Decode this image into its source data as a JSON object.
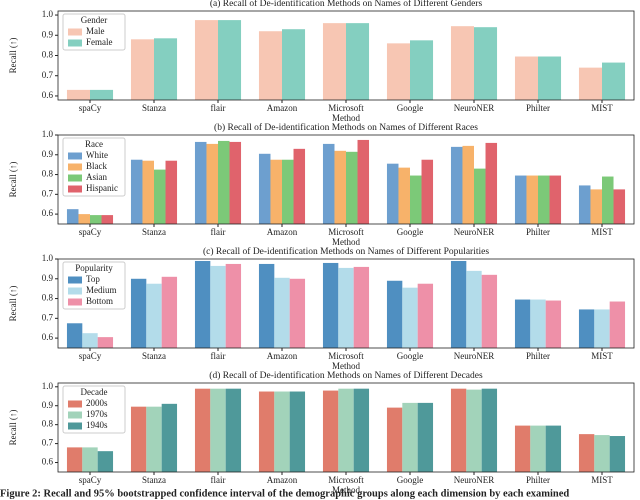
{
  "caption": "Figure 2: Recall and 95% bootstrapped confidence interval of the demographic groups along each dimension by each examined",
  "chart_data": [
    {
      "type": "bar",
      "title": "(a) Recall of De-identification Methods on Names of Different Genders",
      "y_label": "Recall (↑)",
      "x_label": "Method",
      "legend_title": "Gender",
      "categories": [
        "spaCy",
        "Stanza",
        "flair",
        "Amazon",
        "Microsoft",
        "Google",
        "NeuroNER",
        "Philter",
        "MIST"
      ],
      "series": [
        {
          "name": "Male",
          "color": "#f7c6b3",
          "values": [
            0.63,
            0.88,
            0.975,
            0.92,
            0.96,
            0.86,
            0.945,
            0.795,
            0.74
          ]
        },
        {
          "name": "Female",
          "color": "#84cfc0",
          "values": [
            0.63,
            0.885,
            0.975,
            0.93,
            0.96,
            0.875,
            0.94,
            0.795,
            0.765
          ]
        }
      ],
      "ylim": [
        0.58,
        1.02
      ],
      "yticks": [
        0.6,
        0.7,
        0.8,
        0.9,
        {
          "value": 1,
          "label": "1.0"
        }
      ]
    },
    {
      "type": "bar",
      "title": "(b) Recall of De-identification Methods on Names of Different Races",
      "y_label": "Recall (↑)",
      "x_label": "Method",
      "legend_title": "Race",
      "categories": [
        "spaCy",
        "Stanza",
        "flair",
        "Amazon",
        "Microsoft",
        "Google",
        "NeuroNER",
        "Philter",
        "MIST"
      ],
      "series": [
        {
          "name": "White",
          "color": "#6d9fcf",
          "values": [
            0.625,
            0.875,
            0.965,
            0.905,
            0.955,
            0.855,
            0.94,
            0.795,
            0.745
          ]
        },
        {
          "name": "Black",
          "color": "#f7b26a",
          "values": [
            0.6,
            0.87,
            0.955,
            0.875,
            0.92,
            0.835,
            0.945,
            0.795,
            0.725
          ]
        },
        {
          "name": "Asian",
          "color": "#7cc978",
          "values": [
            0.595,
            0.825,
            0.97,
            0.875,
            0.915,
            0.795,
            0.83,
            0.795,
            0.79
          ]
        },
        {
          "name": "Hispanic",
          "color": "#e0636c",
          "values": [
            0.595,
            0.87,
            0.965,
            0.93,
            0.975,
            0.875,
            0.96,
            0.795,
            0.725
          ]
        }
      ],
      "ylim": [
        0.55,
        1.0
      ],
      "yticks": [
        0.6,
        0.7,
        0.8,
        0.9,
        {
          "value": 1,
          "label": "1.0"
        }
      ]
    },
    {
      "type": "bar",
      "title": "(c) Recall of De-identification Methods on Names of Different Popularities",
      "y_label": "Recall (↑)",
      "x_label": "Method",
      "legend_title": "Popularity",
      "categories": [
        "spaCy",
        "Stanza",
        "flair",
        "Amazon",
        "Microsoft",
        "Google",
        "NeuroNER",
        "Philter",
        "MIST"
      ],
      "series": [
        {
          "name": "Top",
          "color": "#4f8fc1",
          "values": [
            0.675,
            0.9,
            0.99,
            0.975,
            0.98,
            0.89,
            0.99,
            0.795,
            0.745
          ]
        },
        {
          "name": "Medium",
          "color": "#b3dcea",
          "values": [
            0.625,
            0.875,
            0.965,
            0.905,
            0.955,
            0.855,
            0.94,
            0.795,
            0.745
          ]
        },
        {
          "name": "Bottom",
          "color": "#ee90a8",
          "values": [
            0.605,
            0.91,
            0.975,
            0.9,
            0.96,
            0.875,
            0.92,
            0.79,
            0.785
          ]
        }
      ],
      "ylim": [
        0.55,
        1.0
      ],
      "yticks": [
        0.6,
        0.7,
        0.8,
        0.9,
        {
          "value": 1,
          "label": "1.0"
        }
      ]
    },
    {
      "type": "bar",
      "title": "(d) Recall of De-identification Methods on Names of Different Decades",
      "y_label": "Recall (↑)",
      "x_label": "Method",
      "legend_title": "Decade",
      "categories": [
        "spaCy",
        "Stanza",
        "flair",
        "Amazon",
        "Microsoft",
        "Google",
        "NeuroNER",
        "Philter",
        "MIST"
      ],
      "series": [
        {
          "name": "2000s",
          "color": "#e07c6b",
          "values": [
            0.68,
            0.895,
            0.99,
            0.975,
            0.98,
            0.89,
            0.99,
            0.795,
            0.75
          ]
        },
        {
          "name": "1970s",
          "color": "#a2d3ba",
          "values": [
            0.68,
            0.895,
            0.99,
            0.975,
            0.99,
            0.915,
            0.985,
            0.795,
            0.745
          ]
        },
        {
          "name": "1940s",
          "color": "#4f999a",
          "values": [
            0.66,
            0.91,
            0.99,
            0.975,
            0.99,
            0.915,
            0.99,
            0.795,
            0.74
          ]
        }
      ],
      "ylim": [
        0.55,
        1.02
      ],
      "yticks": [
        0.6,
        0.7,
        0.8,
        0.9,
        {
          "value": 1,
          "label": "1.0"
        }
      ]
    }
  ]
}
